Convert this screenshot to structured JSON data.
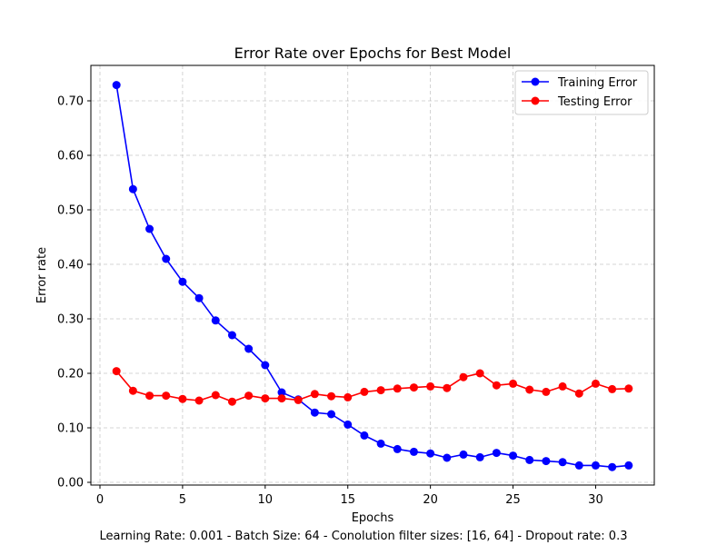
{
  "chart_data": {
    "type": "line",
    "title": "Error Rate over Epochs for Best Model",
    "xlabel": "Epochs",
    "ylabel": "Error rate",
    "caption": "Learning Rate: 0.001 - Batch Size: 64 - Conolution filter sizes: [16, 64] - Dropout rate: 0.3",
    "xlim": [
      -0.55,
      33.55
    ],
    "ylim": [
      -0.005,
      0.765
    ],
    "xticks": [
      0,
      5,
      10,
      15,
      20,
      25,
      30
    ],
    "xtick_labels": [
      "0",
      "5",
      "10",
      "15",
      "20",
      "25",
      "30"
    ],
    "yticks": [
      0.0,
      0.1,
      0.2,
      0.3,
      0.4,
      0.5,
      0.6,
      0.7
    ],
    "ytick_labels": [
      "0.00",
      "0.10",
      "0.20",
      "0.30",
      "0.40",
      "0.50",
      "0.60",
      "0.70"
    ],
    "grid": true,
    "legend_position": "top-right",
    "x": [
      1,
      2,
      3,
      4,
      5,
      6,
      7,
      8,
      9,
      10,
      11,
      12,
      13,
      14,
      15,
      16,
      17,
      18,
      19,
      20,
      21,
      22,
      23,
      24,
      25,
      26,
      27,
      28,
      29,
      30,
      31,
      32
    ],
    "series": [
      {
        "name": "Training Error",
        "color": "#0000ff",
        "values": [
          0.729,
          0.538,
          0.465,
          0.41,
          0.368,
          0.338,
          0.297,
          0.27,
          0.245,
          0.215,
          0.165,
          0.152,
          0.128,
          0.125,
          0.106,
          0.086,
          0.071,
          0.061,
          0.056,
          0.053,
          0.045,
          0.051,
          0.046,
          0.054,
          0.049,
          0.041,
          0.039,
          0.037,
          0.031,
          0.031,
          0.028,
          0.031
        ]
      },
      {
        "name": "Testing Error",
        "color": "#ff0000",
        "values": [
          0.204,
          0.168,
          0.159,
          0.159,
          0.153,
          0.15,
          0.16,
          0.148,
          0.159,
          0.154,
          0.154,
          0.151,
          0.162,
          0.158,
          0.156,
          0.166,
          0.169,
          0.172,
          0.174,
          0.176,
          0.173,
          0.193,
          0.2,
          0.178,
          0.181,
          0.17,
          0.166,
          0.176,
          0.163,
          0.181,
          0.171,
          0.172
        ]
      }
    ]
  }
}
